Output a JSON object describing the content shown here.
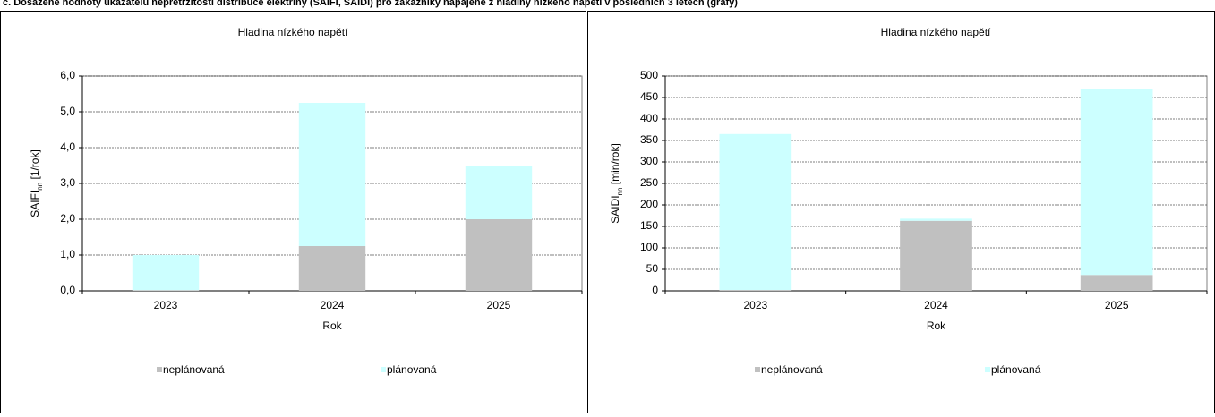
{
  "header": {
    "title": "c. Dosažené hodnoty ukazatelů nepřetržitosti distribuce elektřiny (SAIFI, SAIDI) pro zákazníky napájené z hladiny nízkého napětí v posledních 3 letech (grafy)"
  },
  "chart_data": [
    {
      "type": "stacked_bar",
      "title": "Hladina nízkého napětí",
      "x_label": "Rok",
      "y_label": [
        "SAIFI",
        "nn",
        " [1/rok]"
      ],
      "categories": [
        "2023",
        "2024",
        "2025"
      ],
      "series": [
        {
          "name": "neplánovaná",
          "color": "#c0c0c0",
          "values": [
            0.02,
            1.25,
            2.0
          ]
        },
        {
          "name": "plánovaná",
          "color": "#ccffff",
          "values": [
            0.98,
            4.0,
            1.5
          ]
        }
      ],
      "ylim": [
        0,
        6
      ],
      "yticks": [
        {
          "value": 0,
          "label": "0,0"
        },
        {
          "value": 1,
          "label": "1,0"
        },
        {
          "value": 2,
          "label": "2,0"
        },
        {
          "value": 3,
          "label": "3,0"
        },
        {
          "value": 4,
          "label": "4,0"
        },
        {
          "value": 5,
          "label": "5,0"
        },
        {
          "value": 6,
          "label": "6,0"
        }
      ],
      "grid": true,
      "legend": "bottom"
    },
    {
      "type": "stacked_bar",
      "title": "Hladina nízkého napětí",
      "x_label": "Rok",
      "y_label": [
        "SAIDI",
        "nn",
        " [min/rok]"
      ],
      "categories": [
        "2023",
        "2024",
        "2025"
      ],
      "series": [
        {
          "name": "neplánovaná",
          "color": "#c0c0c0",
          "values": [
            2,
            163,
            37
          ]
        },
        {
          "name": "plánovaná",
          "color": "#ccffff",
          "values": [
            363,
            5,
            433
          ]
        }
      ],
      "ylim": [
        0,
        500
      ],
      "yticks": [
        0,
        50,
        100,
        150,
        200,
        250,
        300,
        350,
        400,
        450,
        500
      ],
      "grid": true,
      "legend": "bottom"
    }
  ]
}
